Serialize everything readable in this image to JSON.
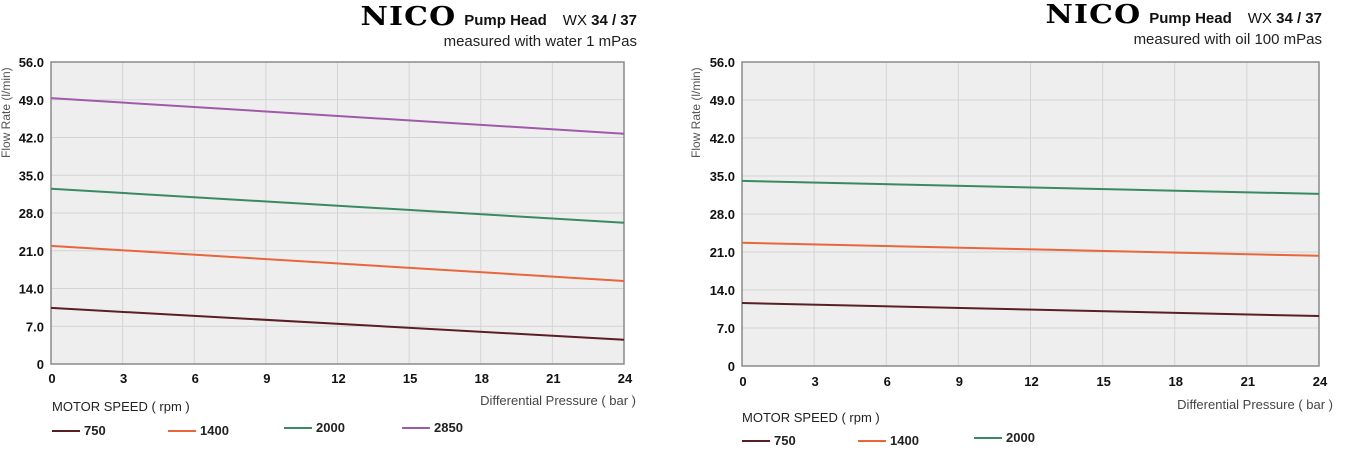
{
  "chart_data": [
    {
      "type": "line",
      "brand": "NICO",
      "title": "Pump Head",
      "model_prefix": "WX",
      "model": "34 / 37",
      "subtitle": "measured with water 1 mPas",
      "xlabel": "Differential Pressure ( bar )",
      "ylabel": "Flow Rate (l/min)",
      "x_ticks": [
        "0",
        "3",
        "6",
        "9",
        "12",
        "15",
        "18",
        "21",
        "24"
      ],
      "y_ticks": [
        "0",
        "7.0",
        "14.0",
        "21.0",
        "28.0",
        "35.0",
        "42.0",
        "49.0",
        "56.0"
      ],
      "xlim": [
        0,
        24
      ],
      "ylim": [
        0,
        56
      ],
      "grid": true,
      "legend_title": "MOTOR SPEED ( rpm )",
      "legend_position": "bottom-left",
      "x": [
        0,
        24
      ],
      "series": [
        {
          "name": "750",
          "color": "#5a1f22",
          "values": [
            10.4,
            4.5
          ]
        },
        {
          "name": "1400",
          "color": "#e8663a",
          "values": [
            21.9,
            15.4
          ]
        },
        {
          "name": "2000",
          "color": "#3a8a5f",
          "values": [
            32.5,
            26.2
          ]
        },
        {
          "name": "2850",
          "color": "#a05aaa",
          "values": [
            49.3,
            42.7
          ]
        }
      ]
    },
    {
      "type": "line",
      "brand": "NICO",
      "title": "Pump Head",
      "model_prefix": "WX",
      "model": "34 / 37",
      "subtitle": "measured with oil 100 mPas",
      "xlabel": "Differential Pressure ( bar )",
      "ylabel": "Flow Rate (l/min)",
      "x_ticks": [
        "0",
        "3",
        "6",
        "9",
        "12",
        "15",
        "18",
        "21",
        "24"
      ],
      "y_ticks": [
        "0",
        "7.0",
        "14.0",
        "21.0",
        "28.0",
        "35.0",
        "42.0",
        "49.0",
        "56.0"
      ],
      "xlim": [
        0,
        24
      ],
      "ylim": [
        0,
        56
      ],
      "grid": true,
      "legend_title": "MOTOR SPEED ( rpm )",
      "legend_position": "bottom-left",
      "x": [
        0,
        24
      ],
      "series": [
        {
          "name": "750",
          "color": "#5a1f22",
          "values": [
            11.6,
            9.2
          ]
        },
        {
          "name": "1400",
          "color": "#e8663a",
          "values": [
            22.7,
            20.3
          ]
        },
        {
          "name": "2000",
          "color": "#3a8a5f",
          "values": [
            34.1,
            31.7
          ]
        }
      ]
    }
  ]
}
